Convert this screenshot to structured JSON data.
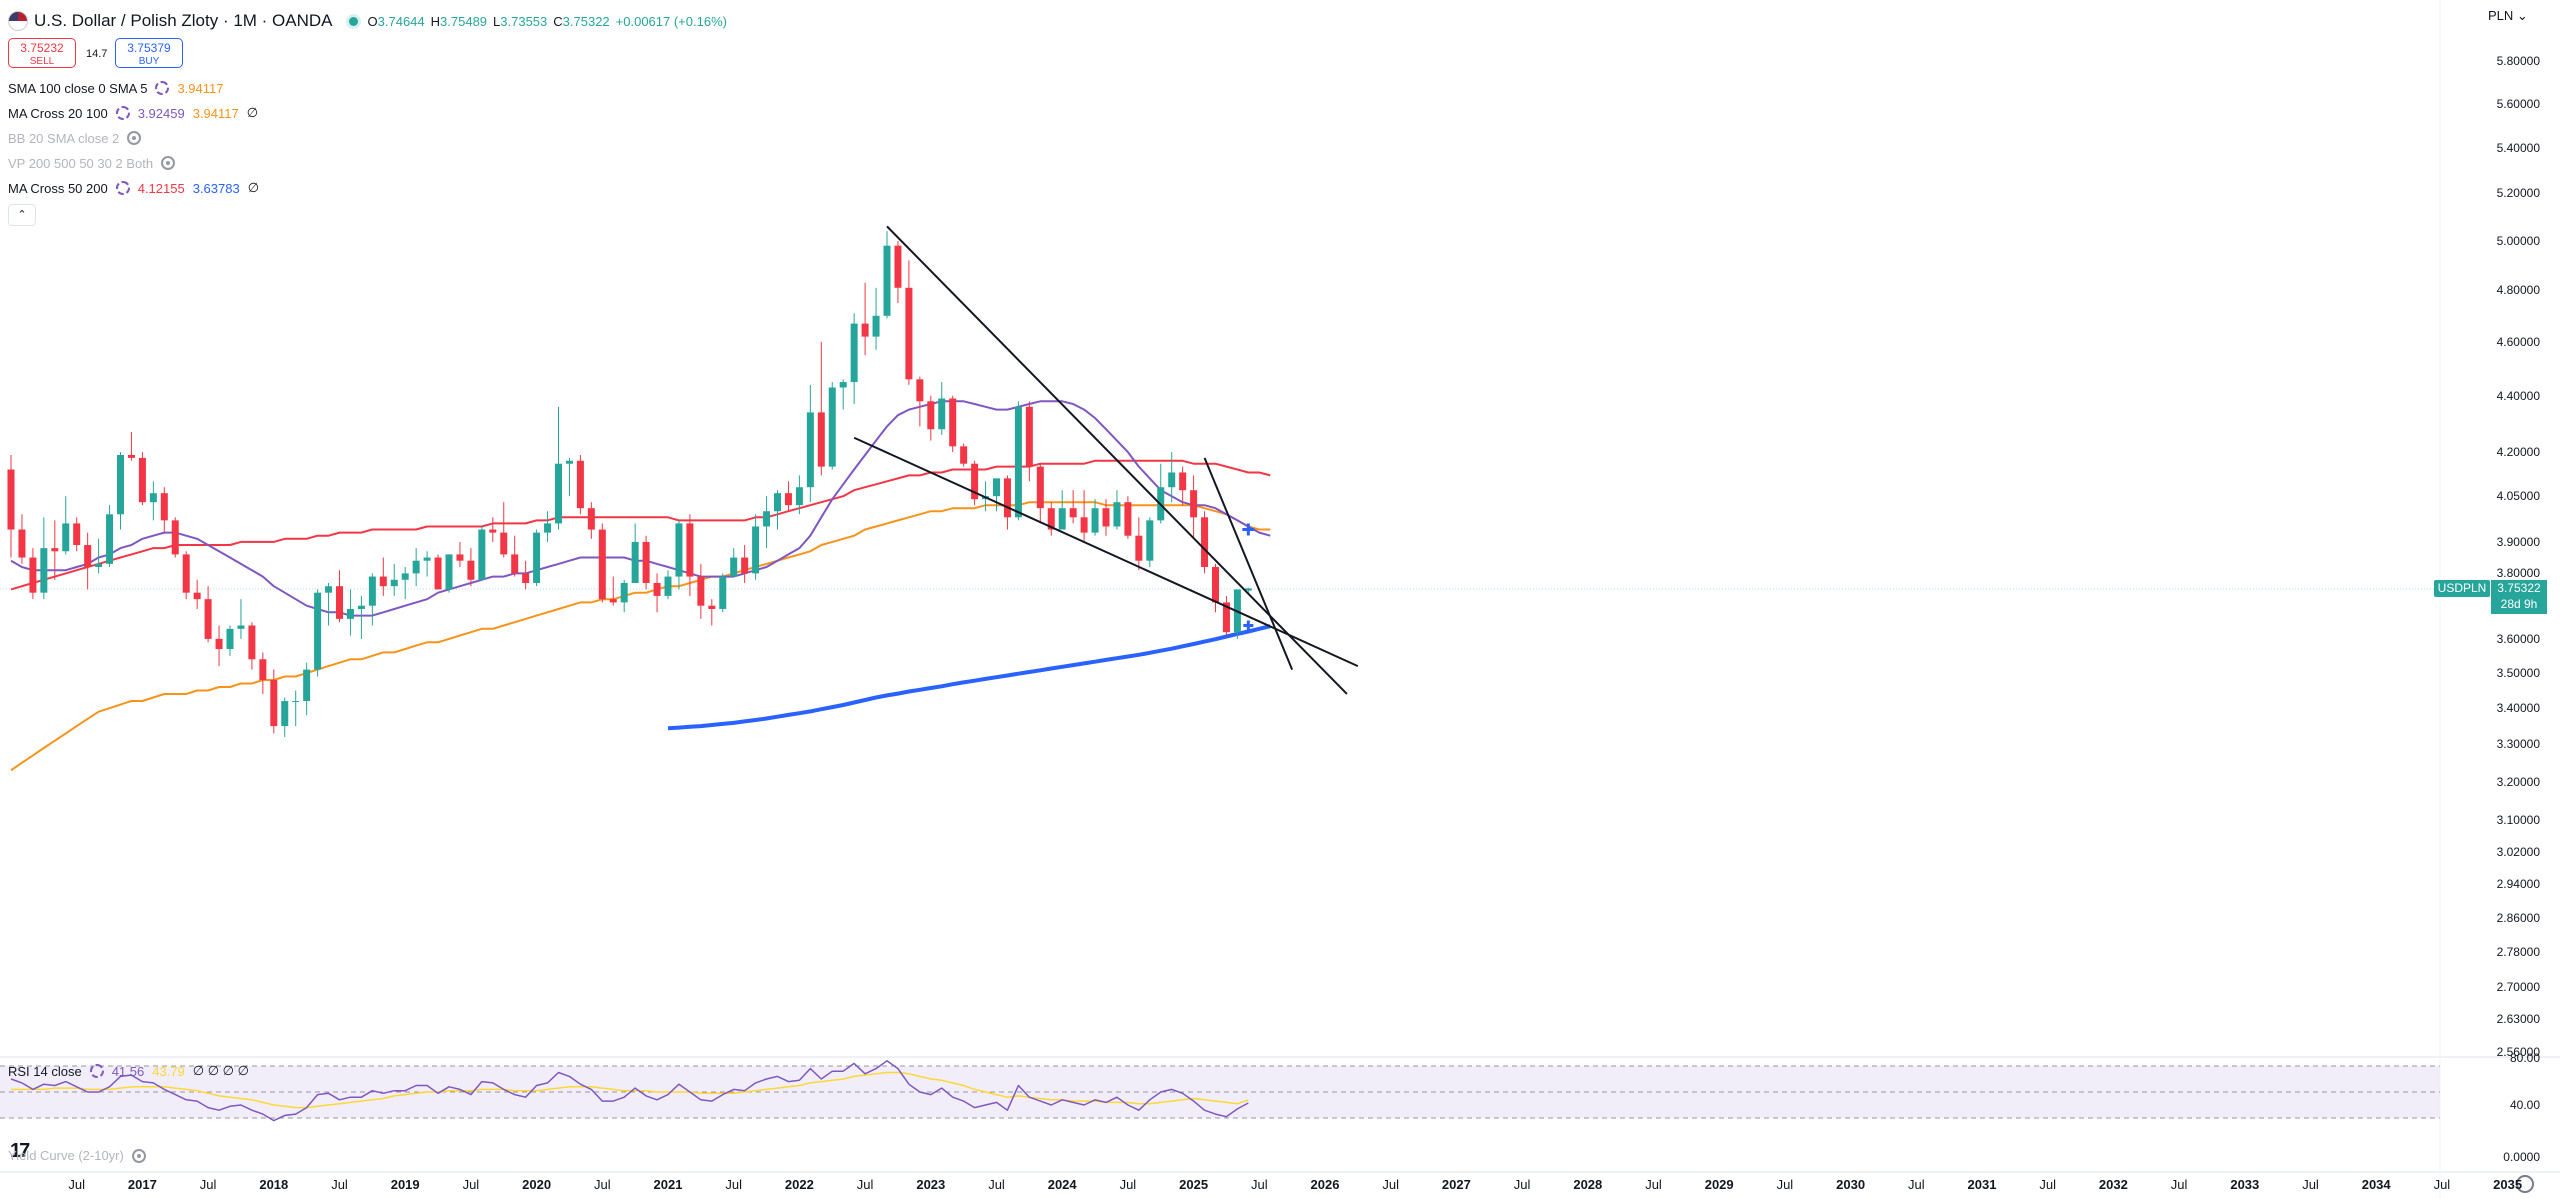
{
  "header": {
    "title": "U.S. Dollar / Polish Zloty · 1M · OANDA",
    "ohlc": [
      {
        "k": "O",
        "v": "3.74644"
      },
      {
        "k": "H",
        "v": "3.75489"
      },
      {
        "k": "L",
        "v": "3.73553"
      },
      {
        "k": "C",
        "v": "3.75322"
      }
    ],
    "change": "+0.00617 (+0.16%)",
    "currency": "PLN"
  },
  "trade": {
    "sell_price": "3.75232",
    "sell_label": "SELL",
    "spread": "14.7",
    "buy_price": "3.75379",
    "buy_label": "BUY"
  },
  "indicators": [
    {
      "name": "SMA 100 close 0 SMA 5",
      "values": [
        "3.94117"
      ],
      "colors": [
        "#f7931a"
      ],
      "hidden": false
    },
    {
      "name": "MA Cross 20 100",
      "values": [
        "3.92459",
        "3.94117"
      ],
      "colors": [
        "#7e57c2",
        "#f7931a"
      ],
      "hidden": false,
      "extra": "∅"
    },
    {
      "name": "BB 20 SMA close 2",
      "values": [],
      "hidden": true
    },
    {
      "name": "VP 200 500 50 30 2 Both",
      "values": [],
      "hidden": true
    },
    {
      "name": "MA Cross 50 200",
      "values": [
        "4.12155",
        "3.63783"
      ],
      "colors": [
        "#f23645",
        "#2962ff"
      ],
      "hidden": false,
      "extra": "∅"
    }
  ],
  "price_axis": [
    "5.80000",
    "5.60000",
    "5.40000",
    "5.20000",
    "5.00000",
    "4.80000",
    "4.60000",
    "4.40000",
    "4.20000",
    "4.05000",
    "3.90000",
    "3.80000",
    "3.60000",
    "3.50000",
    "3.40000",
    "3.30000",
    "3.20000",
    "3.10000",
    "3.02000",
    "2.94000",
    "2.86000",
    "2.78000",
    "2.70000",
    "2.63000",
    "2.56000"
  ],
  "current_price": {
    "symbol": "USDPLN",
    "price": "3.75322",
    "countdown": "28d 9h"
  },
  "time_axis": [
    "Jul",
    "2017",
    "Jul",
    "2018",
    "Jul",
    "2019",
    "Jul",
    "2020",
    "Jul",
    "2021",
    "Jul",
    "2022",
    "Jul",
    "2023",
    "Jul",
    "2024",
    "Jul",
    "2025",
    "Jul",
    "2026",
    "Jul",
    "2027",
    "Jul",
    "2028",
    "Jul",
    "2029",
    "Jul",
    "2030",
    "Jul",
    "2031",
    "Jul",
    "2032",
    "Jul",
    "2033",
    "Jul",
    "2034",
    "Jul",
    "2035"
  ],
  "rsi": {
    "name": "RSI 14 close",
    "value": "41.56",
    "ma_value": "43.79",
    "extras": "∅ ∅ ∅ ∅",
    "axis": [
      "80.00",
      "40.00",
      "0.0000"
    ],
    "levels": [
      70,
      50,
      30
    ],
    "colors": {
      "rsi": "#7e57c2",
      "ma": "#fdd835",
      "band": "#ede7f6"
    }
  },
  "yield_curve": {
    "name": "Yield Curve (2-10yr)"
  },
  "colors": {
    "up": "#26a69a",
    "down": "#f23645",
    "sma100": "#f7931a",
    "ma20": "#7e57c2",
    "ma50": "#f23645",
    "ma200": "#2962ff"
  },
  "chart_data": {
    "type": "candlestick",
    "x_start": "2016-01",
    "candles": [
      [
        4.14,
        4.19,
        3.85,
        3.94
      ],
      [
        3.94,
        3.99,
        3.83,
        3.85
      ],
      [
        3.85,
        3.88,
        3.72,
        3.74
      ],
      [
        3.74,
        3.98,
        3.72,
        3.88
      ],
      [
        3.88,
        3.97,
        3.78,
        3.87
      ],
      [
        3.87,
        4.05,
        3.86,
        3.96
      ],
      [
        3.96,
        3.98,
        3.87,
        3.89
      ],
      [
        3.89,
        3.93,
        3.75,
        3.82
      ],
      [
        3.82,
        3.91,
        3.8,
        3.83
      ],
      [
        3.83,
        4.02,
        3.82,
        3.99
      ],
      [
        3.99,
        4.2,
        3.94,
        4.19
      ],
      [
        4.19,
        4.27,
        4.17,
        4.18
      ],
      [
        4.18,
        4.2,
        4.02,
        4.03
      ],
      [
        4.03,
        4.1,
        3.97,
        4.06
      ],
      [
        4.06,
        4.08,
        3.93,
        3.97
      ],
      [
        3.97,
        3.98,
        3.85,
        3.86
      ],
      [
        3.86,
        3.87,
        3.72,
        3.74
      ],
      [
        3.74,
        3.78,
        3.69,
        3.72
      ],
      [
        3.72,
        3.76,
        3.59,
        3.6
      ],
      [
        3.6,
        3.64,
        3.52,
        3.57
      ],
      [
        3.57,
        3.64,
        3.55,
        3.63
      ],
      [
        3.63,
        3.72,
        3.6,
        3.64
      ],
      [
        3.64,
        3.65,
        3.51,
        3.54
      ],
      [
        3.54,
        3.56,
        3.44,
        3.48
      ],
      [
        3.48,
        3.51,
        3.33,
        3.35
      ],
      [
        3.35,
        3.43,
        3.32,
        3.42
      ],
      [
        3.42,
        3.45,
        3.35,
        3.42
      ],
      [
        3.42,
        3.53,
        3.38,
        3.51
      ],
      [
        3.51,
        3.75,
        3.49,
        3.74
      ],
      [
        3.74,
        3.77,
        3.64,
        3.76
      ],
      [
        3.76,
        3.81,
        3.65,
        3.66
      ],
      [
        3.66,
        3.75,
        3.61,
        3.69
      ],
      [
        3.69,
        3.73,
        3.6,
        3.7
      ],
      [
        3.7,
        3.8,
        3.64,
        3.79
      ],
      [
        3.79,
        3.85,
        3.73,
        3.76
      ],
      [
        3.76,
        3.83,
        3.73,
        3.78
      ],
      [
        3.78,
        3.82,
        3.72,
        3.8
      ],
      [
        3.8,
        3.88,
        3.76,
        3.84
      ],
      [
        3.84,
        3.87,
        3.79,
        3.85
      ],
      [
        3.85,
        3.86,
        3.75,
        3.75
      ],
      [
        3.75,
        3.86,
        3.74,
        3.86
      ],
      [
        3.86,
        3.9,
        3.82,
        3.84
      ],
      [
        3.84,
        3.88,
        3.76,
        3.78
      ],
      [
        3.78,
        3.95,
        3.78,
        3.94
      ],
      [
        3.94,
        3.98,
        3.9,
        3.93
      ],
      [
        3.93,
        4.03,
        3.85,
        3.86
      ],
      [
        3.86,
        3.92,
        3.79,
        3.8
      ],
      [
        3.8,
        3.84,
        3.75,
        3.77
      ],
      [
        3.77,
        3.94,
        3.76,
        3.93
      ],
      [
        3.93,
        4.0,
        3.9,
        3.96
      ],
      [
        3.96,
        4.36,
        3.94,
        4.16
      ],
      [
        4.16,
        4.18,
        4.05,
        4.17
      ],
      [
        4.17,
        4.19,
        3.99,
        4.01
      ],
      [
        4.01,
        4.03,
        3.91,
        3.94
      ],
      [
        3.94,
        3.96,
        3.71,
        3.72
      ],
      [
        3.72,
        3.79,
        3.7,
        3.71
      ],
      [
        3.71,
        3.78,
        3.68,
        3.77
      ],
      [
        3.77,
        3.96,
        3.77,
        3.9
      ],
      [
        3.9,
        3.92,
        3.75,
        3.77
      ],
      [
        3.77,
        3.8,
        3.68,
        3.73
      ],
      [
        3.73,
        3.81,
        3.72,
        3.79
      ],
      [
        3.79,
        3.97,
        3.75,
        3.96
      ],
      [
        3.96,
        3.99,
        3.73,
        3.79
      ],
      [
        3.79,
        3.83,
        3.66,
        3.7
      ],
      [
        3.7,
        3.72,
        3.64,
        3.69
      ],
      [
        3.69,
        3.8,
        3.68,
        3.79
      ],
      [
        3.79,
        3.88,
        3.79,
        3.85
      ],
      [
        3.85,
        3.89,
        3.77,
        3.8
      ],
      [
        3.8,
        3.99,
        3.78,
        3.95
      ],
      [
        3.95,
        4.05,
        3.88,
        4.0
      ],
      [
        4.0,
        4.07,
        3.94,
        4.06
      ],
      [
        4.06,
        4.1,
        4.0,
        4.02
      ],
      [
        4.02,
        4.12,
        3.99,
        4.08
      ],
      [
        4.08,
        4.44,
        4.03,
        4.34
      ],
      [
        4.34,
        4.6,
        4.12,
        4.15
      ],
      [
        4.15,
        4.45,
        4.14,
        4.43
      ],
      [
        4.43,
        4.46,
        4.35,
        4.45
      ],
      [
        4.45,
        4.71,
        4.37,
        4.67
      ],
      [
        4.67,
        4.83,
        4.55,
        4.62
      ],
      [
        4.62,
        4.81,
        4.57,
        4.7
      ],
      [
        4.7,
        5.04,
        4.69,
        4.98
      ],
      [
        4.98,
        5.0,
        4.75,
        4.81
      ],
      [
        4.81,
        4.92,
        4.44,
        4.46
      ],
      [
        4.46,
        4.47,
        4.29,
        4.38
      ],
      [
        4.38,
        4.4,
        4.24,
        4.28
      ],
      [
        4.28,
        4.45,
        4.26,
        4.39
      ],
      [
        4.39,
        4.4,
        4.2,
        4.22
      ],
      [
        4.22,
        4.23,
        4.15,
        4.16
      ],
      [
        4.16,
        4.17,
        4.02,
        4.04
      ],
      [
        4.04,
        4.1,
        4.0,
        4.05
      ],
      [
        4.05,
        4.11,
        4.0,
        4.11
      ],
      [
        4.11,
        4.12,
        3.94,
        3.98
      ],
      [
        3.98,
        4.38,
        3.97,
        4.36
      ],
      [
        4.36,
        4.38,
        4.1,
        4.15
      ],
      [
        4.15,
        4.16,
        3.96,
        4.01
      ],
      [
        4.01,
        4.03,
        3.92,
        3.94
      ],
      [
        3.94,
        4.07,
        3.94,
        4.01
      ],
      [
        4.01,
        4.07,
        3.96,
        3.98
      ],
      [
        3.98,
        4.07,
        3.9,
        3.93
      ],
      [
        3.93,
        4.04,
        3.92,
        4.01
      ],
      [
        4.01,
        4.04,
        3.92,
        3.95
      ],
      [
        3.95,
        4.07,
        3.94,
        4.03
      ],
      [
        4.03,
        4.05,
        3.91,
        3.92
      ],
      [
        3.92,
        3.98,
        3.81,
        3.84
      ],
      [
        3.84,
        3.98,
        3.82,
        3.97
      ],
      [
        3.97,
        4.16,
        3.96,
        4.08
      ],
      [
        4.08,
        4.2,
        4.03,
        4.13
      ],
      [
        4.13,
        4.15,
        4.02,
        4.07
      ],
      [
        4.07,
        4.12,
        3.91,
        3.98
      ],
      [
        3.98,
        4.0,
        3.8,
        3.82
      ],
      [
        3.82,
        3.83,
        3.68,
        3.71
      ],
      [
        3.71,
        3.73,
        3.61,
        3.62
      ],
      [
        3.62,
        3.75,
        3.6,
        3.75
      ],
      [
        3.74644,
        3.75489,
        3.73553,
        3.75322
      ]
    ],
    "sma100": [
      3.23,
      3.25,
      3.27,
      3.29,
      3.31,
      3.33,
      3.35,
      3.37,
      3.39,
      3.4,
      3.41,
      3.42,
      3.42,
      3.43,
      3.44,
      3.44,
      3.44,
      3.45,
      3.45,
      3.46,
      3.46,
      3.47,
      3.47,
      3.48,
      3.48,
      3.49,
      3.49,
      3.5,
      3.51,
      3.52,
      3.53,
      3.54,
      3.54,
      3.55,
      3.56,
      3.56,
      3.57,
      3.58,
      3.59,
      3.59,
      3.6,
      3.61,
      3.62,
      3.63,
      3.63,
      3.64,
      3.65,
      3.66,
      3.67,
      3.68,
      3.69,
      3.7,
      3.71,
      3.71,
      3.72,
      3.72,
      3.73,
      3.74,
      3.74,
      3.75,
      3.76,
      3.76,
      3.77,
      3.78,
      3.79,
      3.79,
      3.8,
      3.81,
      3.82,
      3.83,
      3.84,
      3.85,
      3.86,
      3.87,
      3.89,
      3.9,
      3.91,
      3.92,
      3.94,
      3.95,
      3.96,
      3.97,
      3.98,
      3.99,
      4.0,
      4.0,
      4.01,
      4.01,
      4.01,
      4.02,
      4.02,
      4.02,
      4.02,
      4.03,
      4.03,
      4.03,
      4.03,
      4.03,
      4.03,
      4.03,
      4.02,
      4.02,
      4.02,
      4.02,
      4.02,
      4.02,
      4.02,
      4.02,
      4.02,
      4.01,
      4.0,
      3.99,
      3.97,
      3.95,
      3.94,
      3.94
    ],
    "ma20": [
      3.84,
      3.82,
      3.81,
      3.81,
      3.81,
      3.81,
      3.82,
      3.83,
      3.85,
      3.86,
      3.88,
      3.89,
      3.91,
      3.92,
      3.93,
      3.93,
      3.92,
      3.91,
      3.89,
      3.87,
      3.85,
      3.83,
      3.81,
      3.79,
      3.76,
      3.74,
      3.72,
      3.7,
      3.69,
      3.68,
      3.68,
      3.67,
      3.67,
      3.67,
      3.68,
      3.69,
      3.7,
      3.71,
      3.72,
      3.74,
      3.75,
      3.76,
      3.77,
      3.78,
      3.79,
      3.79,
      3.8,
      3.8,
      3.81,
      3.82,
      3.83,
      3.84,
      3.85,
      3.85,
      3.85,
      3.85,
      3.85,
      3.84,
      3.84,
      3.83,
      3.82,
      3.81,
      3.8,
      3.79,
      3.79,
      3.79,
      3.79,
      3.8,
      3.81,
      3.82,
      3.84,
      3.86,
      3.88,
      3.92,
      3.98,
      4.04,
      4.09,
      4.14,
      4.19,
      4.24,
      4.29,
      4.33,
      4.35,
      4.36,
      4.37,
      4.38,
      4.38,
      4.38,
      4.37,
      4.36,
      4.35,
      4.35,
      4.36,
      4.37,
      4.38,
      4.38,
      4.38,
      4.37,
      4.35,
      4.32,
      4.28,
      4.24,
      4.2,
      4.15,
      4.11,
      4.07,
      4.05,
      4.03,
      4.02,
      4.02,
      4.01,
      3.99,
      3.97,
      3.95,
      3.93,
      3.92
    ],
    "ma50": [
      3.75,
      3.76,
      3.77,
      3.78,
      3.79,
      3.8,
      3.81,
      3.82,
      3.83,
      3.84,
      3.85,
      3.86,
      3.87,
      3.88,
      3.88,
      3.89,
      3.89,
      3.89,
      3.89,
      3.89,
      3.89,
      3.9,
      3.9,
      3.9,
      3.9,
      3.91,
      3.91,
      3.91,
      3.92,
      3.92,
      3.93,
      3.93,
      3.93,
      3.94,
      3.94,
      3.94,
      3.94,
      3.94,
      3.95,
      3.95,
      3.95,
      3.95,
      3.95,
      3.95,
      3.96,
      3.96,
      3.96,
      3.96,
      3.97,
      3.97,
      3.98,
      3.98,
      3.98,
      3.98,
      3.98,
      3.98,
      3.98,
      3.98,
      3.98,
      3.98,
      3.98,
      3.97,
      3.97,
      3.97,
      3.97,
      3.97,
      3.97,
      3.97,
      3.98,
      3.98,
      3.99,
      4.0,
      4.01,
      4.02,
      4.03,
      4.04,
      4.05,
      4.07,
      4.08,
      4.09,
      4.1,
      4.11,
      4.12,
      4.12,
      4.13,
      4.13,
      4.14,
      4.14,
      4.14,
      4.14,
      4.15,
      4.15,
      4.15,
      4.15,
      4.16,
      4.16,
      4.16,
      4.16,
      4.16,
      4.17,
      4.17,
      4.17,
      4.17,
      4.17,
      4.17,
      4.17,
      4.17,
      4.17,
      4.16,
      4.16,
      4.16,
      4.15,
      4.14,
      4.13,
      4.13,
      4.12
    ],
    "ma200": [
      null,
      null,
      null,
      null,
      null,
      null,
      null,
      null,
      null,
      null,
      null,
      null,
      null,
      null,
      null,
      null,
      null,
      null,
      null,
      null,
      null,
      null,
      null,
      null,
      null,
      null,
      null,
      null,
      null,
      null,
      null,
      null,
      null,
      null,
      null,
      null,
      null,
      null,
      null,
      null,
      null,
      null,
      null,
      null,
      null,
      null,
      null,
      null,
      null,
      null,
      null,
      null,
      null,
      null,
      null,
      null,
      null,
      null,
      null,
      null,
      3.344,
      3.346,
      3.348,
      3.35,
      3.353,
      3.356,
      3.359,
      3.363,
      3.367,
      3.371,
      3.376,
      3.381,
      3.386,
      3.391,
      3.397,
      3.403,
      3.409,
      3.416,
      3.423,
      3.43,
      3.436,
      3.441,
      3.447,
      3.452,
      3.457,
      3.462,
      3.468,
      3.473,
      3.478,
      3.483,
      3.488,
      3.493,
      3.498,
      3.503,
      3.508,
      3.513,
      3.518,
      3.523,
      3.528,
      3.533,
      3.538,
      3.543,
      3.548,
      3.553,
      3.559,
      3.565,
      3.571,
      3.578,
      3.585,
      3.592,
      3.599,
      3.607,
      3.615,
      3.622,
      3.63,
      3.638
    ],
    "rsi": [
      60,
      57,
      52,
      56,
      55,
      58,
      54,
      50,
      50,
      54,
      62,
      63,
      58,
      57,
      52,
      48,
      44,
      43,
      38,
      36,
      39,
      40,
      36,
      33,
      28,
      32,
      33,
      38,
      48,
      49,
      44,
      46,
      46,
      51,
      49,
      51,
      51,
      55,
      55,
      49,
      54,
      52,
      48,
      58,
      57,
      52,
      48,
      46,
      55,
      57,
      65,
      62,
      56,
      52,
      43,
      43,
      46,
      53,
      47,
      44,
      48,
      56,
      50,
      44,
      43,
      48,
      52,
      51,
      57,
      60,
      62,
      58,
      59,
      68,
      60,
      66,
      66,
      72,
      64,
      68,
      74,
      68,
      56,
      50,
      48,
      53,
      46,
      43,
      38,
      40,
      42,
      36,
      55,
      46,
      43,
      40,
      44,
      42,
      40,
      44,
      42,
      46,
      40,
      36,
      44,
      50,
      52,
      49,
      43,
      36,
      33,
      31,
      37,
      41.56
    ],
    "rsi_ma": [
      52,
      52,
      52,
      52,
      53,
      53,
      53,
      52,
      52,
      52,
      53,
      54,
      54,
      54,
      54,
      53,
      52,
      51,
      49,
      47,
      46,
      45,
      44,
      42,
      40,
      39,
      38,
      38,
      39,
      40,
      41,
      42,
      43,
      44,
      45,
      47,
      48,
      49,
      50,
      50,
      51,
      51,
      51,
      52,
      52,
      52,
      51,
      51,
      51,
      52,
      53,
      54,
      54,
      54,
      53,
      52,
      51,
      51,
      51,
      50,
      50,
      50,
      50,
      49,
      49,
      49,
      49,
      50,
      51,
      52,
      53,
      54,
      55,
      57,
      58,
      59,
      60,
      62,
      63,
      64,
      65,
      65,
      64,
      62,
      60,
      59,
      57,
      55,
      52,
      50,
      48,
      46,
      47,
      46,
      45,
      44,
      44,
      43,
      43,
      43,
      42,
      42,
      42,
      41,
      41,
      42,
      43,
      44,
      45,
      44,
      43,
      42,
      41,
      43.79
    ],
    "trendlines": [
      {
        "from": [
          "2022-09",
          5.06
        ],
        "to": [
          "2026-03",
          3.44
        ]
      },
      {
        "from": [
          "2022-06",
          4.25
        ],
        "to": [
          "2026-04",
          3.52
        ]
      },
      {
        "from": [
          "2025-02",
          4.18
        ],
        "to": [
          "2025-10",
          3.51
        ]
      }
    ],
    "ylim": [
      2.56,
      5.86
    ],
    "log_scale": true,
    "grid": false
  }
}
